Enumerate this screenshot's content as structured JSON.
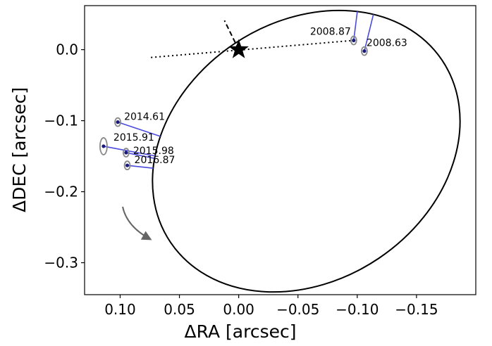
{
  "chart_data": {
    "type": "scatter",
    "title": "",
    "xlabel": "ΔRA [arcsec]",
    "ylabel": "ΔDEC [arcsec]",
    "x_inverted": true,
    "xlim": [
      0.13,
      -0.2
    ],
    "ylim": [
      -0.345,
      0.062
    ],
    "xticks": [
      {
        "value": 0.1,
        "label": "0.10"
      },
      {
        "value": 0.05,
        "label": "0.05"
      },
      {
        "value": 0.0,
        "label": "0.00"
      },
      {
        "value": -0.05,
        "label": "−0.05"
      },
      {
        "value": -0.1,
        "label": "−0.10"
      },
      {
        "value": -0.15,
        "label": "−0.15"
      }
    ],
    "yticks": [
      {
        "value": 0.0,
        "label": "0.0"
      },
      {
        "value": -0.1,
        "label": "−0.1"
      },
      {
        "value": -0.2,
        "label": "−0.2"
      },
      {
        "value": -0.3,
        "label": "−0.3"
      }
    ],
    "grid": false,
    "star": {
      "x": 0.0,
      "y": 0.0
    },
    "orbit_ellipse": {
      "center": [
        -0.057,
        -0.143
      ],
      "semi_axes": [
        0.138,
        0.182
      ],
      "rotation_deg": 34
    },
    "line_of_nodes": [
      [
        0.074,
        -0.011
      ],
      [
        -0.097,
        0.013
      ]
    ],
    "periastron_segment": [
      [
        0.0,
        0.0
      ],
      [
        0.012,
        0.041
      ]
    ],
    "observations": [
      {
        "epoch": "2008.63",
        "x": -0.106,
        "y": -0.002
      },
      {
        "epoch": "2008.87",
        "x": -0.097,
        "y": 0.013
      },
      {
        "epoch": "2014.61",
        "x": 0.102,
        "y": -0.102
      },
      {
        "epoch": "2015.91",
        "x": 0.114,
        "y": -0.136
      },
      {
        "epoch": "2015.98",
        "x": 0.095,
        "y": -0.145
      },
      {
        "epoch": "2016.87",
        "x": 0.094,
        "y": -0.163
      }
    ]
  }
}
